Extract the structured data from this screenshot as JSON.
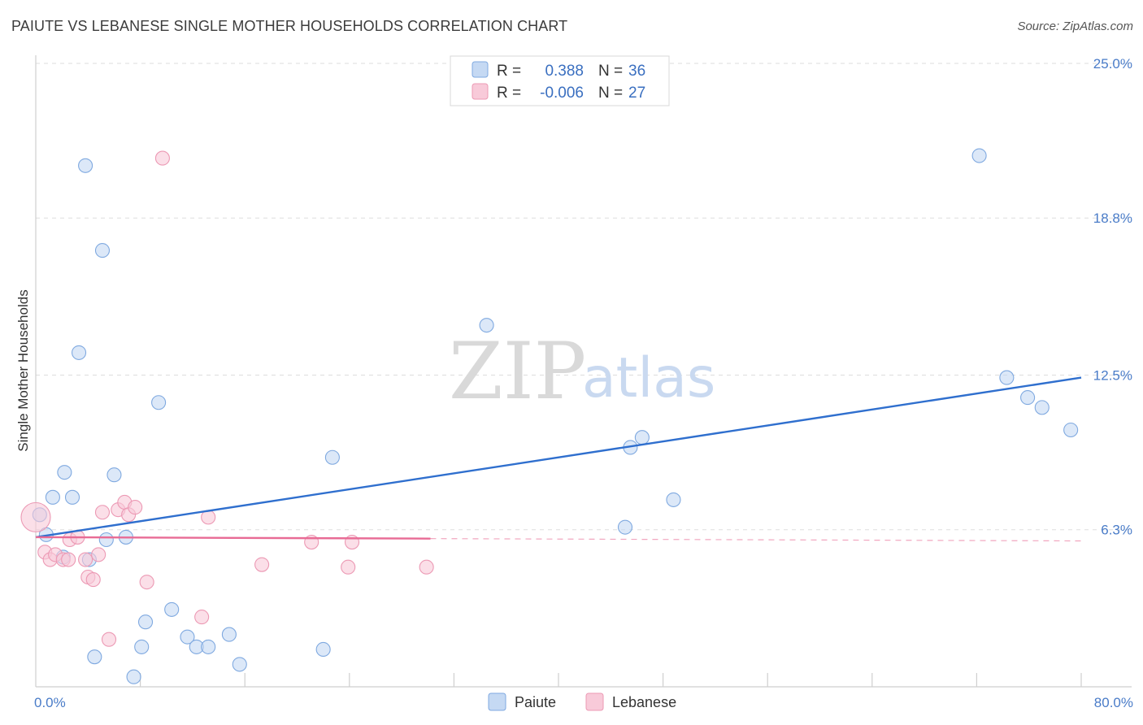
{
  "header": {
    "title": "PAIUTE VS LEBANESE SINGLE MOTHER HOUSEHOLDS CORRELATION CHART",
    "source": "Source: ZipAtlas.com"
  },
  "watermark": {
    "zip": "ZIP",
    "atlas": "atlas"
  },
  "chart_data": {
    "type": "scatter",
    "title": "PAIUTE VS LEBANESE SINGLE MOTHER HOUSEHOLDS CORRELATION CHART",
    "xlabel": "",
    "ylabel": "Single Mother Households",
    "xlim": [
      0,
      80
    ],
    "ylim": [
      0,
      25
    ],
    "x_tick_labels": [
      "0.0%",
      "80.0%"
    ],
    "y_ticks": [
      {
        "value": 6.3,
        "label": "6.3%"
      },
      {
        "value": 12.5,
        "label": "12.5%"
      },
      {
        "value": 18.8,
        "label": "18.8%"
      },
      {
        "value": 25.0,
        "label": "25.0%"
      }
    ],
    "legend": [
      {
        "name": "Paiute",
        "r_label": "R =",
        "r_value": "0.388",
        "n_label": "N =",
        "n_value": "36",
        "color": "#7fa9e0",
        "fill": "#c5d9f3"
      },
      {
        "name": "Lebanese",
        "r_label": "R =",
        "r_value": "-0.006",
        "n_label": "N =",
        "n_value": "27",
        "color": "#ec99b4",
        "fill": "#f8cad9"
      }
    ],
    "series": [
      {
        "name": "Paiute",
        "color": "#7fa9e0",
        "fill": "#c5d9f3",
        "line_color": "#2f6fce",
        "trend": {
          "x": [
            0,
            80
          ],
          "y": [
            6.0,
            12.4
          ],
          "dashed_from": null
        },
        "points": [
          [
            0.3,
            6.9
          ],
          [
            0.8,
            6.1
          ],
          [
            1.3,
            7.6
          ],
          [
            2.1,
            5.2
          ],
          [
            2.2,
            8.6
          ],
          [
            2.8,
            7.6
          ],
          [
            3.3,
            13.4
          ],
          [
            3.8,
            20.9
          ],
          [
            4.1,
            5.1
          ],
          [
            4.5,
            1.2
          ],
          [
            5.1,
            17.5
          ],
          [
            5.4,
            5.9
          ],
          [
            6.0,
            8.5
          ],
          [
            6.9,
            6.0
          ],
          [
            7.5,
            0.4
          ],
          [
            8.1,
            1.6
          ],
          [
            8.4,
            2.6
          ],
          [
            9.4,
            11.4
          ],
          [
            10.4,
            3.1
          ],
          [
            11.6,
            2.0
          ],
          [
            12.3,
            1.6
          ],
          [
            13.2,
            1.6
          ],
          [
            14.8,
            2.1
          ],
          [
            15.6,
            0.9
          ],
          [
            22.0,
            1.5
          ],
          [
            22.7,
            9.2
          ],
          [
            34.5,
            14.5
          ],
          [
            45.1,
            6.4
          ],
          [
            45.5,
            9.6
          ],
          [
            46.4,
            10.0
          ],
          [
            48.8,
            7.5
          ],
          [
            72.2,
            21.3
          ],
          [
            74.3,
            12.4
          ],
          [
            75.9,
            11.6
          ],
          [
            77.0,
            11.2
          ],
          [
            79.2,
            10.3
          ]
        ]
      },
      {
        "name": "Lebanese",
        "color": "#ec99b4",
        "fill": "#f8cad9",
        "line_color": "#e86b95",
        "trend": {
          "x": [
            0,
            80
          ],
          "y": [
            6.0,
            5.85
          ],
          "dashed_from": 30.2
        },
        "points": [
          [
            0.0,
            6.8
          ],
          [
            0.7,
            5.4
          ],
          [
            1.1,
            5.1
          ],
          [
            1.5,
            5.3
          ],
          [
            2.1,
            5.1
          ],
          [
            2.5,
            5.1
          ],
          [
            2.6,
            5.9
          ],
          [
            3.2,
            6.0
          ],
          [
            3.8,
            5.1
          ],
          [
            4.0,
            4.4
          ],
          [
            4.4,
            4.3
          ],
          [
            4.8,
            5.3
          ],
          [
            5.1,
            7.0
          ],
          [
            5.6,
            1.9
          ],
          [
            6.3,
            7.1
          ],
          [
            6.8,
            7.4
          ],
          [
            7.1,
            6.9
          ],
          [
            7.6,
            7.2
          ],
          [
            8.5,
            4.2
          ],
          [
            9.7,
            21.2
          ],
          [
            12.7,
            2.8
          ],
          [
            13.2,
            6.8
          ],
          [
            17.3,
            4.9
          ],
          [
            21.1,
            5.8
          ],
          [
            23.9,
            4.8
          ],
          [
            24.2,
            5.8
          ],
          [
            29.9,
            4.8
          ]
        ]
      }
    ]
  }
}
